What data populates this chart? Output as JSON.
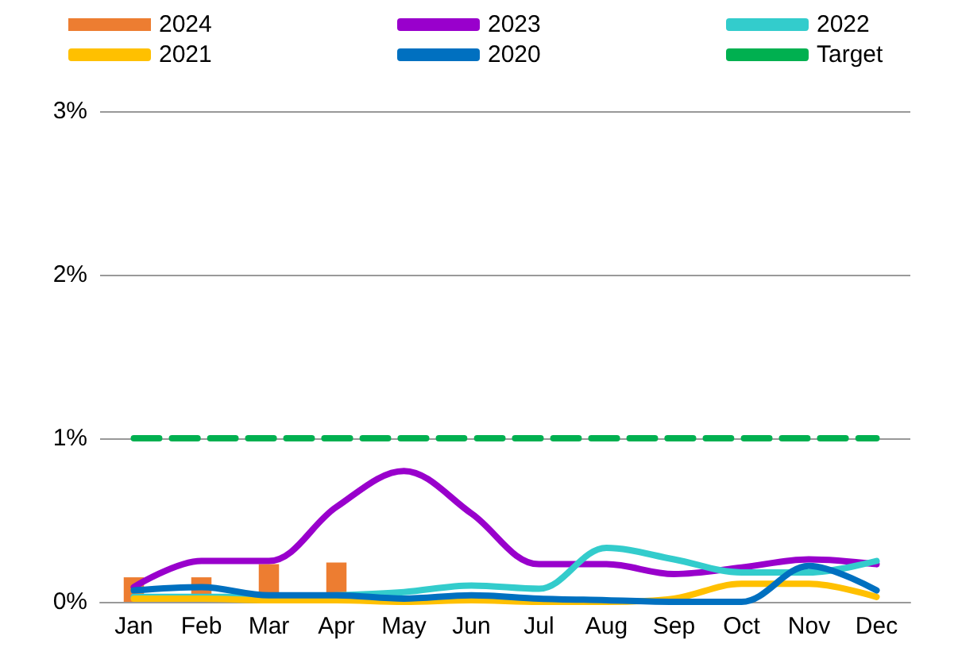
{
  "chart_data": {
    "type": "line",
    "categories": [
      "Jan",
      "Feb",
      "Mar",
      "Apr",
      "May",
      "Jun",
      "Jul",
      "Aug",
      "Sep",
      "Oct",
      "Nov",
      "Dec"
    ],
    "series": [
      {
        "name": "2024",
        "type": "bar",
        "color": "#ed7d31",
        "values": [
          0.15,
          0.15,
          0.23,
          0.24,
          null,
          null,
          null,
          null,
          null,
          null,
          null,
          null
        ]
      },
      {
        "name": "2023",
        "color": "#9900cc",
        "values": [
          0.09,
          0.25,
          0.25,
          0.58,
          0.8,
          0.54,
          0.23,
          0.23,
          0.17,
          0.21,
          0.26,
          0.23
        ]
      },
      {
        "name": "2022",
        "color": "#33cccc",
        "values": [
          0.03,
          0.03,
          0.03,
          0.04,
          0.06,
          0.1,
          0.08,
          0.33,
          0.26,
          0.18,
          0.18,
          0.25
        ]
      },
      {
        "name": "2021",
        "color": "#ffc000",
        "values": [
          0.02,
          0.02,
          0.01,
          0.01,
          0.0,
          0.01,
          0.0,
          0.0,
          0.02,
          0.11,
          0.11,
          0.03
        ]
      },
      {
        "name": "2020",
        "color": "#0070c0",
        "values": [
          0.07,
          0.09,
          0.04,
          0.04,
          0.02,
          0.04,
          0.02,
          0.01,
          0.0,
          0.0,
          0.22,
          0.07
        ]
      },
      {
        "name": "Target",
        "color": "#00b050",
        "line_style": "dashed",
        "values": [
          1,
          1,
          1,
          1,
          1,
          1,
          1,
          1,
          1,
          1,
          1,
          1
        ]
      }
    ],
    "ylim": [
      0,
      3
    ],
    "yticks": [
      {
        "value": 0,
        "label": "0%"
      },
      {
        "value": 1,
        "label": "1%"
      },
      {
        "value": 2,
        "label": "2%"
      },
      {
        "value": 3,
        "label": "3%"
      }
    ],
    "grid": "y",
    "legend": "top",
    "marker": "none",
    "line_style": "solid"
  }
}
